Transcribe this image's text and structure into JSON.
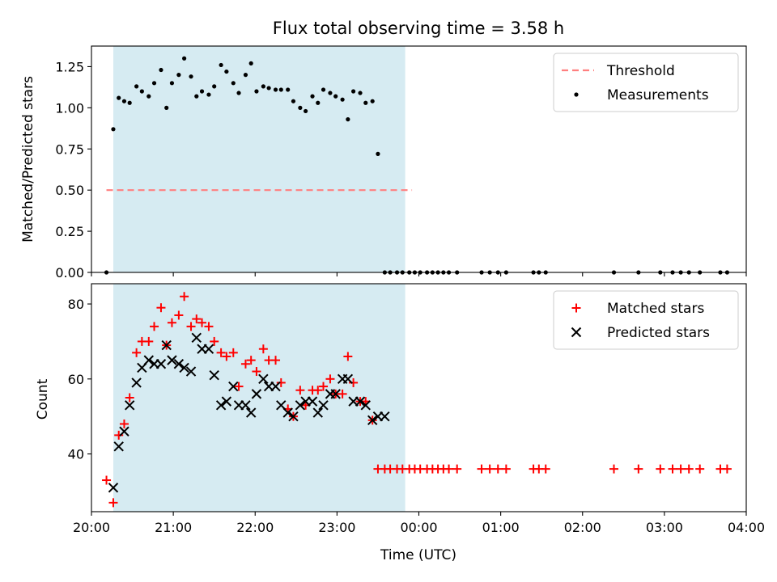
{
  "figure": {
    "title": "Flux total observing time = 3.58 h",
    "xlabel": "Time (UTC)"
  },
  "colors": {
    "shade": "#add8e6",
    "threshold": "#ff7f7f",
    "measurements": "#000000",
    "matched": "#ff0000",
    "predicted": "#000000"
  },
  "chart_data": [
    {
      "type": "scatter",
      "ylabel": "Matched/Predicted stars",
      "xlim": [
        "20:00",
        "04:00"
      ],
      "ylim": [
        0,
        1.375
      ],
      "x_ticks": [
        "20:00",
        "21:00",
        "22:00",
        "23:00",
        "00:00",
        "01:00",
        "02:00",
        "03:00",
        "04:00"
      ],
      "y_ticks": [
        "0.00",
        "0.25",
        "0.50",
        "0.75",
        "1.00",
        "1.25"
      ],
      "shaded_span": [
        "20:16",
        "23:50"
      ],
      "legend_position": "upper right",
      "threshold": {
        "name": "Threshold",
        "value": 0.5,
        "x": [
          "20:11",
          "23:55"
        ]
      },
      "series": [
        {
          "name": "Measurements",
          "x": [
            "20:11",
            "20:16",
            "20:20",
            "20:24",
            "20:28",
            "20:33",
            "20:37",
            "20:42",
            "20:46",
            "20:51",
            "20:55",
            "20:59",
            "21:04",
            "21:08",
            "21:13",
            "21:17",
            "21:21",
            "21:26",
            "21:30",
            "21:35",
            "21:39",
            "21:44",
            "21:48",
            "21:53",
            "21:57",
            "22:01",
            "22:06",
            "22:10",
            "22:15",
            "22:19",
            "22:24",
            "22:28",
            "22:33",
            "22:37",
            "22:42",
            "22:46",
            "22:50",
            "22:55",
            "22:59",
            "23:04",
            "23:08",
            "23:12",
            "23:17",
            "23:21",
            "23:26",
            "23:30",
            "23:35",
            "23:39",
            "23:44",
            "23:48",
            "23:53",
            "23:57",
            "00:01",
            "00:06",
            "00:10",
            "00:14",
            "00:18",
            "00:22",
            "00:28",
            "00:46",
            "00:52",
            "00:58",
            "01:04",
            "01:24",
            "01:28",
            "01:33",
            "02:23",
            "02:41",
            "02:57",
            "03:06",
            "03:12",
            "03:18",
            "03:26",
            "03:41",
            "03:46"
          ],
          "y": [
            0.0,
            0.87,
            1.06,
            1.04,
            1.03,
            1.13,
            1.1,
            1.07,
            1.15,
            1.23,
            1.0,
            1.15,
            1.2,
            1.3,
            1.19,
            1.07,
            1.1,
            1.08,
            1.13,
            1.26,
            1.22,
            1.15,
            1.09,
            1.2,
            1.27,
            1.1,
            1.13,
            1.12,
            1.11,
            1.11,
            1.11,
            1.04,
            1.0,
            0.98,
            1.07,
            1.03,
            1.11,
            1.09,
            1.07,
            1.05,
            0.93,
            1.1,
            1.09,
            1.03,
            1.04,
            0.72,
            0.0,
            0.0,
            0.0,
            0.0,
            0.0,
            0.0,
            0.0,
            0.0,
            0.0,
            0.0,
            0.0,
            0.0,
            0.0,
            0.0,
            0.0,
            0.0,
            0.0,
            0.0,
            0.0,
            0.0,
            0.0,
            0.0,
            0.0,
            0.0,
            0.0,
            0.0,
            0.0,
            0.0,
            0.0
          ]
        }
      ]
    },
    {
      "type": "scatter",
      "ylabel": "Count",
      "xlim": [
        "20:00",
        "04:00"
      ],
      "ylim": [
        24.6,
        85.4
      ],
      "x_ticks": [
        "20:00",
        "21:00",
        "22:00",
        "23:00",
        "00:00",
        "01:00",
        "02:00",
        "03:00",
        "04:00"
      ],
      "y_ticks": [
        "40",
        "60",
        "80"
      ],
      "shaded_span": [
        "20:16",
        "23:50"
      ],
      "legend_position": "upper right",
      "series": [
        {
          "name": "Matched stars",
          "marker": "+",
          "x": [
            "20:11",
            "20:16",
            "20:20",
            "20:24",
            "20:28",
            "20:33",
            "20:37",
            "20:42",
            "20:46",
            "20:51",
            "20:55",
            "20:59",
            "21:04",
            "21:08",
            "21:13",
            "21:17",
            "21:21",
            "21:26",
            "21:30",
            "21:35",
            "21:39",
            "21:44",
            "21:48",
            "21:53",
            "21:57",
            "22:01",
            "22:06",
            "22:10",
            "22:15",
            "22:19",
            "22:24",
            "22:28",
            "22:33",
            "22:37",
            "22:42",
            "22:46",
            "22:50",
            "22:55",
            "22:59",
            "23:04",
            "23:08",
            "23:12",
            "23:17",
            "23:21",
            "23:26",
            "23:30",
            "23:35",
            "23:39",
            "23:44",
            "23:48",
            "23:53",
            "23:57",
            "00:01",
            "00:06",
            "00:10",
            "00:14",
            "00:18",
            "00:22",
            "00:28",
            "00:46",
            "00:52",
            "00:58",
            "01:04",
            "01:24",
            "01:28",
            "01:33",
            "02:23",
            "02:41",
            "02:57",
            "03:06",
            "03:12",
            "03:18",
            "03:26",
            "03:41",
            "03:46"
          ],
          "y": [
            33,
            27,
            45,
            48,
            55,
            67,
            70,
            70,
            74,
            79,
            69,
            75,
            77,
            82,
            74,
            76,
            75,
            74,
            70,
            67,
            66,
            67,
            58,
            64,
            65,
            62,
            68,
            65,
            65,
            59,
            52,
            50,
            57,
            53,
            57,
            57,
            58,
            60,
            56,
            56,
            66,
            59,
            54,
            54,
            49,
            36,
            36,
            36,
            36,
            36,
            36,
            36,
            36,
            36,
            36,
            36,
            36,
            36,
            36,
            36,
            36,
            36,
            36,
            36,
            36,
            36,
            36,
            36,
            36,
            36,
            36,
            36,
            36,
            36,
            36
          ]
        },
        {
          "name": "Predicted stars",
          "marker": "x",
          "x": [
            "20:16",
            "20:20",
            "20:24",
            "20:28",
            "20:33",
            "20:37",
            "20:42",
            "20:46",
            "20:51",
            "20:55",
            "20:59",
            "21:04",
            "21:08",
            "21:13",
            "21:17",
            "21:21",
            "21:26",
            "21:30",
            "21:35",
            "21:39",
            "21:44",
            "21:48",
            "21:53",
            "21:57",
            "22:01",
            "22:06",
            "22:10",
            "22:15",
            "22:19",
            "22:24",
            "22:28",
            "22:33",
            "22:37",
            "22:42",
            "22:46",
            "22:50",
            "22:55",
            "22:59",
            "23:04",
            "23:08",
            "23:12",
            "23:17",
            "23:21",
            "23:26",
            "23:30",
            "23:35"
          ],
          "y": [
            31,
            42,
            46,
            53,
            59,
            63,
            65,
            64,
            64,
            69,
            65,
            64,
            63,
            62,
            71,
            68,
            68,
            61,
            53,
            54,
            58,
            53,
            53,
            51,
            56,
            60,
            58,
            58,
            53,
            51,
            50,
            53,
            54,
            54,
            51,
            53,
            56,
            56,
            60,
            60,
            54,
            54,
            53,
            49,
            50,
            50
          ]
        }
      ]
    }
  ]
}
